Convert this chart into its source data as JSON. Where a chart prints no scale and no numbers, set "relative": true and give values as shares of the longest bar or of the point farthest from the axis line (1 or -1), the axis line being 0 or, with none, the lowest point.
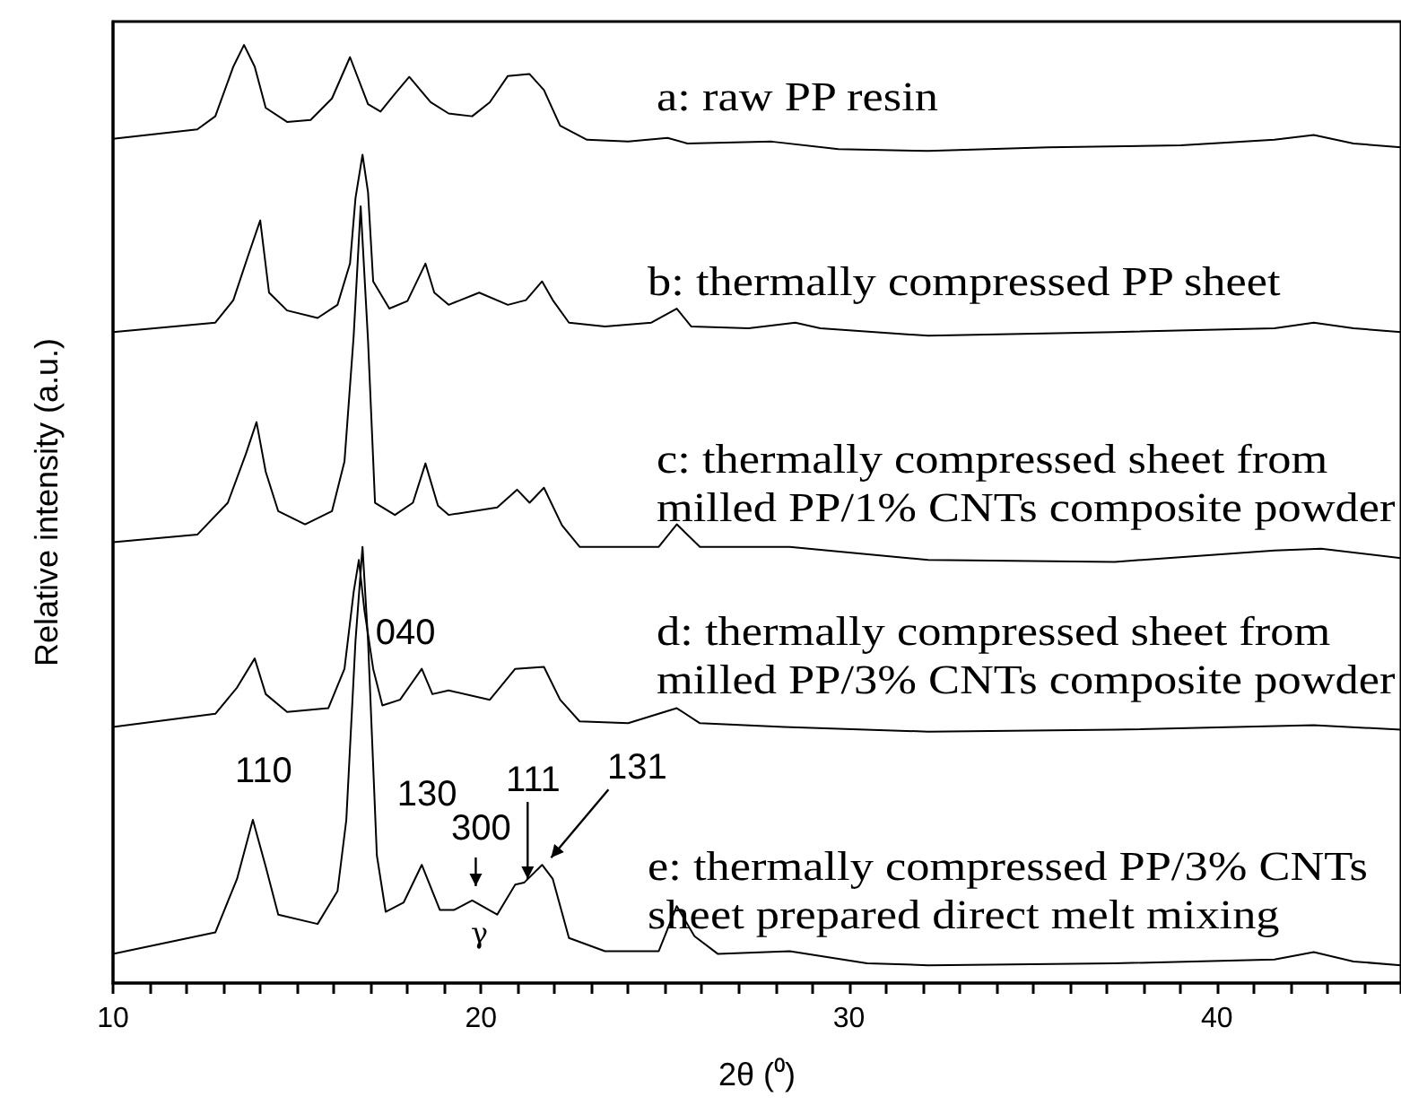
{
  "chart_data": {
    "type": "line",
    "relative": true,
    "xlabel": "2θ (⁰)",
    "ylabel": "Relative intensity (a.u.)",
    "xlim": [
      10,
      45
    ],
    "xticks": [
      10,
      {
        "value": 11,
        "label": null
      },
      {
        "value": 12,
        "label": null
      },
      {
        "value": 13,
        "label": null
      },
      {
        "value": 14,
        "label": null
      },
      {
        "value": 15,
        "label": null
      },
      {
        "value": 16,
        "label": null
      },
      {
        "value": 17,
        "label": null
      },
      {
        "value": 18,
        "label": null
      },
      {
        "value": 19,
        "label": null
      },
      20,
      {
        "value": 21,
        "label": null
      },
      {
        "value": 22,
        "label": null
      },
      {
        "value": 23,
        "label": null
      },
      {
        "value": 24,
        "label": null
      },
      {
        "value": 25,
        "label": null
      },
      {
        "value": 26,
        "label": null
      },
      {
        "value": 27,
        "label": null
      },
      {
        "value": 28,
        "label": null
      },
      {
        "value": 29,
        "label": null
      },
      30,
      {
        "value": 31,
        "label": null
      },
      {
        "value": 32,
        "label": null
      },
      {
        "value": 33,
        "label": null
      },
      {
        "value": 34,
        "label": null
      },
      {
        "value": 35,
        "label": null
      },
      {
        "value": 36,
        "label": null
      },
      {
        "value": 37,
        "label": null
      },
      {
        "value": 38,
        "label": null
      },
      {
        "value": 39,
        "label": null
      },
      40,
      {
        "value": 41,
        "label": null
      },
      {
        "value": 42,
        "label": null
      },
      {
        "value": 43,
        "label": null
      },
      {
        "value": 44,
        "label": null
      },
      {
        "value": 45,
        "label": null
      }
    ],
    "tick_labels": "x",
    "grid": false,
    "legend": "right",
    "marker": "none",
    "line_style": "solid",
    "series": [
      {
        "name": "a: raw PP resin",
        "color": "#000000",
        "x": [
          10,
          12.29,
          12.78,
          13.27,
          13.56,
          13.85,
          14.15,
          14.73,
          15.37,
          15.95,
          16.44,
          16.93,
          17.27,
          17.66,
          18.05,
          18.63,
          19.12,
          19.76,
          20.24,
          20.73,
          21.32,
          21.71,
          22.15,
          22.88,
          24.0,
          25.07,
          25.61,
          27.9,
          29.71,
          32.15,
          35.41,
          39.02,
          41.56,
          42.63,
          43.71,
          45
        ],
        "values": [
          0.9,
          0.91,
          0.924,
          0.977,
          1.0,
          0.977,
          0.933,
          0.918,
          0.92,
          0.943,
          0.987,
          0.937,
          0.929,
          0.948,
          0.966,
          0.939,
          0.927,
          0.924,
          0.939,
          0.967,
          0.969,
          0.952,
          0.914,
          0.899,
          0.897,
          0.901,
          0.895,
          0.897,
          0.889,
          0.887,
          0.891,
          0.893,
          0.899,
          0.904,
          0.895,
          0.891
        ]
      },
      {
        "name": "b: thermally compressed PP sheet",
        "color": "#000000",
        "x": [
          10,
          12.78,
          13.27,
          13.66,
          14.0,
          14.24,
          14.73,
          15.56,
          16.1,
          16.44,
          16.59,
          16.78,
          16.93,
          17.07,
          17.51,
          18.0,
          18.49,
          18.73,
          19.12,
          19.95,
          20.73,
          21.22,
          21.66,
          21.95,
          22.39,
          23.37,
          24.63,
          25.32,
          25.71,
          27.27,
          28.54,
          29.22,
          32.15,
          37.22,
          41.56,
          42.63,
          43.71,
          45
        ],
        "values": [
          0.694,
          0.704,
          0.728,
          0.774,
          0.813,
          0.736,
          0.717,
          0.709,
          0.723,
          0.767,
          0.837,
          0.883,
          0.843,
          0.748,
          0.719,
          0.727,
          0.767,
          0.736,
          0.723,
          0.736,
          0.723,
          0.728,
          0.748,
          0.728,
          0.704,
          0.7,
          0.704,
          0.719,
          0.7,
          0.698,
          0.704,
          0.698,
          0.69,
          0.694,
          0.698,
          0.704,
          0.698,
          0.694
        ]
      },
      {
        "name": "c: thermally compressed sheet from milled PP/1% CNTs composite powder",
        "color": "#000000",
        "x": [
          10,
          12.29,
          13.12,
          13.61,
          13.9,
          14.15,
          14.49,
          15.22,
          15.95,
          16.29,
          16.54,
          16.73,
          16.93,
          17.12,
          17.66,
          18.15,
          18.49,
          18.83,
          19.12,
          20.44,
          20.98,
          21.32,
          21.71,
          22.2,
          22.68,
          24.83,
          25.32,
          25.95,
          28.39,
          32.15,
          37.22,
          41.56,
          42.83,
          45
        ],
        "values": [
          0.47,
          0.478,
          0.512,
          0.564,
          0.598,
          0.545,
          0.503,
          0.489,
          0.503,
          0.556,
          0.69,
          0.828,
          0.685,
          0.512,
          0.499,
          0.512,
          0.554,
          0.509,
          0.499,
          0.507,
          0.526,
          0.512,
          0.528,
          0.488,
          0.465,
          0.465,
          0.489,
          0.465,
          0.465,
          0.451,
          0.449,
          0.461,
          0.463,
          0.453
        ]
      },
      {
        "name": "d: thermally compressed sheet from milled PP/3% CNTs composite powder",
        "color": "#000000",
        "x": [
          10,
          12.78,
          13.37,
          13.85,
          14.15,
          14.73,
          15.85,
          16.29,
          16.54,
          16.68,
          16.83,
          17.07,
          17.32,
          17.8,
          18.39,
          18.68,
          19.12,
          20.24,
          20.93,
          21.71,
          22.15,
          22.68,
          24.0,
          25.32,
          25.95,
          28.24,
          32.15,
          37.22,
          42.63,
          45
        ],
        "values": [
          0.273,
          0.287,
          0.315,
          0.346,
          0.308,
          0.289,
          0.293,
          0.335,
          0.417,
          0.451,
          0.398,
          0.335,
          0.296,
          0.302,
          0.335,
          0.308,
          0.312,
          0.302,
          0.335,
          0.337,
          0.302,
          0.279,
          0.277,
          0.293,
          0.277,
          0.273,
          0.268,
          0.27,
          0.275,
          0.27
        ]
      },
      {
        "name": "e: thermally compressed PP/3% CNTs sheet prepared direct melt mixing",
        "color": "#000000",
        "x": [
          10,
          12.78,
          13.37,
          13.8,
          14.15,
          14.49,
          15.56,
          16.1,
          16.34,
          16.59,
          16.78,
          16.93,
          17.17,
          17.41,
          17.9,
          18.39,
          18.88,
          19.27,
          19.76,
          20.44,
          20.93,
          21.17,
          21.66,
          21.95,
          22.39,
          23.37,
          24.83,
          25.32,
          25.8,
          26.44,
          28.39,
          30.49,
          32.15,
          37.22,
          41.56,
          42.63,
          43.71,
          45
        ],
        "values": [
          0.031,
          0.054,
          0.111,
          0.174,
          0.124,
          0.073,
          0.063,
          0.098,
          0.174,
          0.365,
          0.465,
          0.365,
          0.136,
          0.076,
          0.086,
          0.126,
          0.078,
          0.078,
          0.088,
          0.073,
          0.105,
          0.107,
          0.126,
          0.111,
          0.048,
          0.034,
          0.034,
          0.082,
          0.05,
          0.031,
          0.034,
          0.021,
          0.019,
          0.021,
          0.025,
          0.033,
          0.023,
          0.019
        ]
      }
    ],
    "annotations": [
      {
        "text": "110",
        "x": 13.8,
        "y": 0.174
      },
      {
        "text": "040",
        "x": 16.78,
        "y": 0.465
      },
      {
        "text": "130",
        "x": 18.39,
        "y": 0.126
      },
      {
        "text": "300",
        "x": 19.76,
        "y": 0.088
      },
      {
        "text": "111",
        "x": 21.17,
        "y": 0.107
      },
      {
        "text": "131",
        "x": 21.66,
        "y": 0.126
      },
      {
        "text": "γ",
        "x": 19.76,
        "y": 0.088
      }
    ]
  }
}
